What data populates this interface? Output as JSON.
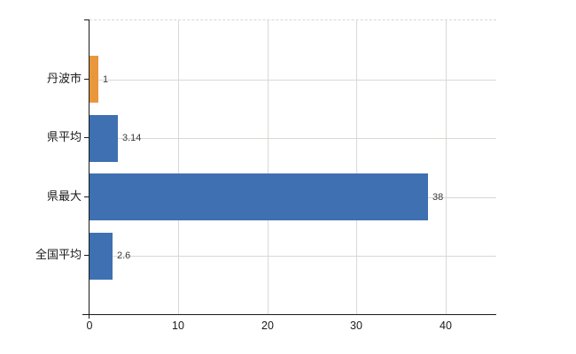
{
  "chart_data": {
    "type": "bar",
    "orientation": "horizontal",
    "categories": [
      "丹波市",
      "県平均",
      "県最大",
      "全国平均"
    ],
    "values": [
      1,
      3.14,
      38,
      2.6
    ],
    "value_labels": [
      "1",
      "3.14",
      "38",
      "2.6"
    ],
    "bar_colors": [
      "#e9973d",
      "#3f70b2",
      "#3f70b2",
      "#3f70b2"
    ],
    "highlighted_category": "丹波市",
    "x_ticks": [
      0,
      10,
      20,
      30,
      40
    ],
    "xlim": [
      0,
      45.7
    ],
    "title": "",
    "xlabel": "",
    "ylabel": "",
    "grid": true,
    "legend": false,
    "colors": {
      "bar_blue": "#3f70b2",
      "bar_orange": "#e9973d",
      "gridline": "#d6dad4",
      "axis": "#1a1a1a",
      "value_label": "#3a3a3a",
      "background": "#ffffff"
    }
  }
}
